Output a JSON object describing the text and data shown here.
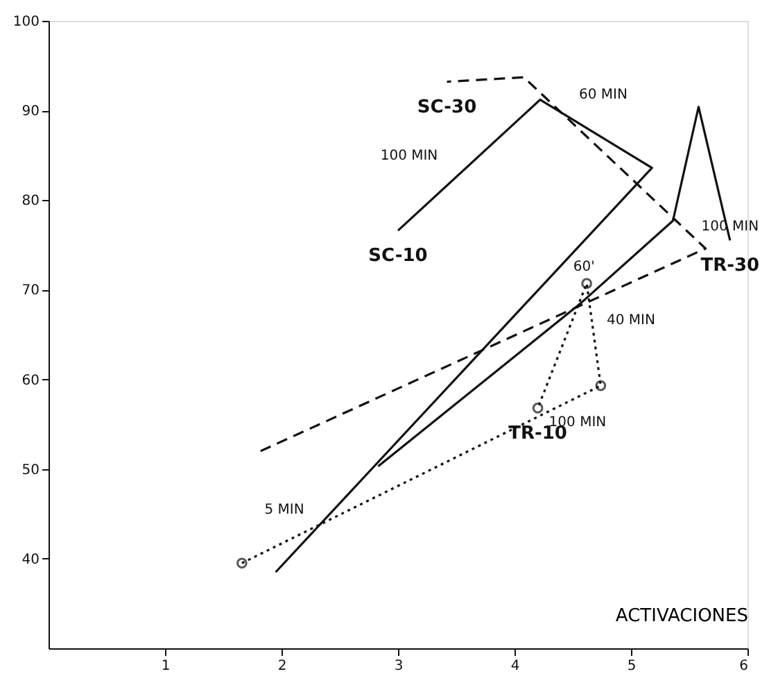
{
  "chart_data": {
    "type": "line",
    "xlabel": "ACTIVACIONES",
    "xlim": [
      0,
      6
    ],
    "xticks": [
      1,
      2,
      3,
      4,
      5,
      6
    ],
    "ylim": [
      30,
      100
    ],
    "yticks": [
      40,
      50,
      60,
      70,
      80,
      90,
      100
    ],
    "grid": false,
    "series": [
      {
        "name": "SC-10",
        "color": "#111111",
        "line_style": "solid",
        "marker": "none",
        "x": [
          1.95,
          5.18,
          4.22,
          3.0
        ],
        "values": [
          38.5,
          83.6,
          91.2,
          76.6
        ]
      },
      {
        "name": "SC-30",
        "color": "#111111",
        "line_style": "dashed",
        "marker": "none",
        "x": [
          1.82,
          5.64,
          4.08,
          3.42
        ],
        "values": [
          52.0,
          74.6,
          93.7,
          93.2
        ]
      },
      {
        "name": "TR-10",
        "color": "#111111",
        "line_style": "dotted",
        "marker": "circle",
        "x": [
          1.66,
          4.74,
          4.62,
          4.2
        ],
        "values": [
          39.5,
          59.3,
          70.7,
          56.8
        ]
      },
      {
        "name": "TR-30",
        "color": "#111111",
        "line_style": "solid",
        "marker": "none",
        "x": [
          2.83,
          4.56,
          5.36,
          5.58,
          5.85
        ],
        "values": [
          50.3,
          68.4,
          77.7,
          90.4,
          75.5
        ]
      }
    ],
    "annotations": [
      "5 MIN",
      "60 MIN",
      "100 MIN",
      "40 MIN",
      {
        "text": "60'",
        "x": 4.62,
        "y": 70.7
      },
      {
        "text": "100 MIN",
        "x": 4.2,
        "y": 56.8
      },
      {
        "text": "100 MIN",
        "x": 5.85,
        "y": 75.5
      }
    ]
  }
}
